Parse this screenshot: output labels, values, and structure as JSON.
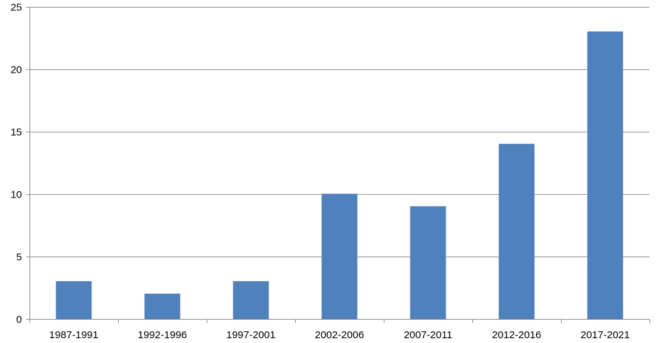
{
  "chart_data": {
    "type": "bar",
    "title": "",
    "xlabel": "",
    "ylabel": "",
    "categories": [
      "1987-1991",
      "1992-1996",
      "1997-2001",
      "2002-2006",
      "2007-2011",
      "2012-2016",
      "2017-2021"
    ],
    "values": [
      3,
      2,
      3,
      10,
      9,
      14,
      23
    ],
    "ylim": [
      0,
      25
    ],
    "yticks": [
      0,
      5,
      10,
      15,
      20,
      25
    ],
    "grid": true,
    "legend": "none",
    "colors": {
      "bar": "#4f81bd",
      "grid": "#8c8c8c"
    }
  }
}
